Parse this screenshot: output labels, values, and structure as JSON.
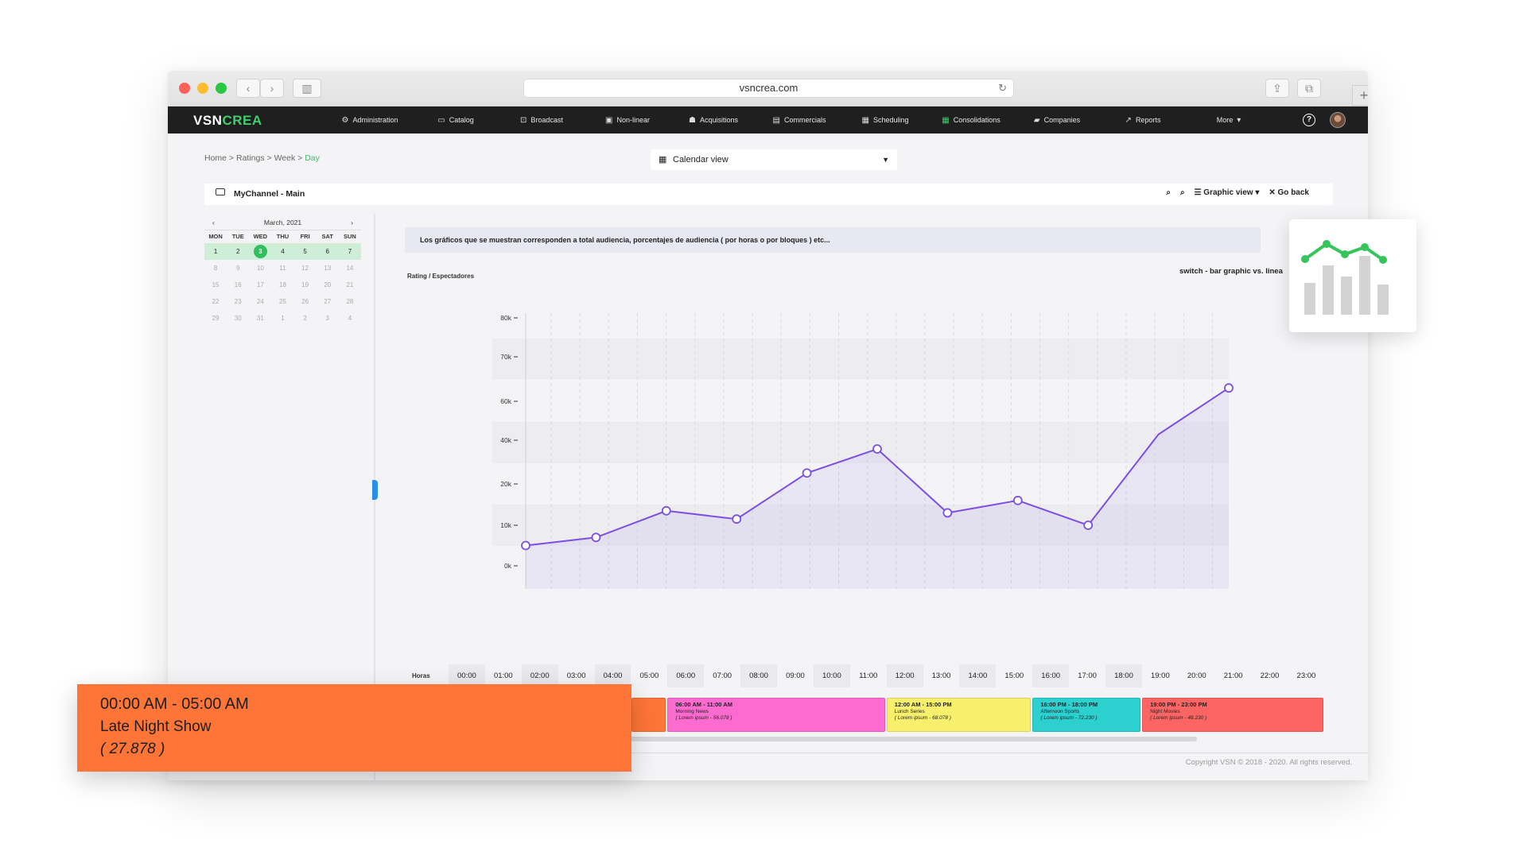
{
  "browser": {
    "url": "vsncrea.com"
  },
  "app": {
    "logo_a": "VSN",
    "logo_b": "CREA",
    "menu": [
      {
        "label": "Administration",
        "icon": "gear-icon",
        "glyph": "⚙"
      },
      {
        "label": "Catalog",
        "icon": "folder-icon",
        "glyph": "▭"
      },
      {
        "label": "Broadcast",
        "icon": "cast-icon",
        "glyph": "⊡"
      },
      {
        "label": "Non-linear",
        "icon": "screen-icon",
        "glyph": "▣"
      },
      {
        "label": "Acquisitions",
        "icon": "basket-icon",
        "glyph": "☗"
      },
      {
        "label": "Commercials",
        "icon": "list-icon",
        "glyph": "▤"
      },
      {
        "label": "Scheduling",
        "icon": "calendar-icon",
        "glyph": "▦"
      },
      {
        "label": "Consolidations",
        "icon": "calendar-check-icon",
        "glyph": "▦"
      },
      {
        "label": "Companies",
        "icon": "briefcase-icon",
        "glyph": "▰"
      },
      {
        "label": "Reports",
        "icon": "trend-icon",
        "glyph": "↗"
      },
      {
        "label": "More",
        "icon": "caret-down-icon",
        "glyph": "▾"
      }
    ],
    "help": "?"
  },
  "breadcrumb": {
    "items": [
      "Home",
      "Ratings",
      "Week"
    ],
    "current": "Day"
  },
  "view_select": {
    "label": "Calendar view"
  },
  "channel": {
    "title": "MyChannel - Main"
  },
  "tools": {
    "graphic_view": "Graphic view",
    "go_back": "Go back"
  },
  "calendar": {
    "month": "March, 2021",
    "dow": [
      "MON",
      "TUE",
      "WED",
      "THU",
      "FRI",
      "SAT",
      "SUN"
    ],
    "weeks": [
      [
        "1",
        "2",
        "3",
        "4",
        "5",
        "6",
        "7"
      ],
      [
        "8",
        "9",
        "10",
        "11",
        "12",
        "13",
        "14"
      ],
      [
        "15",
        "16",
        "17",
        "18",
        "19",
        "20",
        "21"
      ],
      [
        "22",
        "23",
        "24",
        "25",
        "26",
        "27",
        "28"
      ],
      [
        "29",
        "30",
        "31",
        "1",
        "2",
        "3",
        "4"
      ]
    ],
    "selected": "3"
  },
  "info_text": "Los gráficos que se muestran corresponden a total audiencia, porcentajes de audiencia ( por horas o por bloques ) etc...",
  "switch_label": "switch - bar graphic vs. linea",
  "chart_data": {
    "type": "line",
    "ylabel": "Rating / Espectadores",
    "xlabel": "Horas",
    "y_ticks": [
      "0k",
      "10k",
      "20k",
      "40k",
      "60k",
      "70k",
      "80k"
    ],
    "x": [
      "00:00",
      "01:00",
      "02:00",
      "03:00",
      "04:00",
      "05:00",
      "06:00",
      "07:00",
      "08:00",
      "09:00",
      "10:00",
      "11:00",
      "12:00",
      "13:00",
      "14:00",
      "15:00",
      "16:00",
      "17:00",
      "18:00",
      "19:00",
      "20:00",
      "21:00",
      "22:00",
      "23:00"
    ],
    "series": [
      {
        "points": [
          {
            "hour": 0,
            "value": 5
          },
          {
            "hour": 2.4,
            "value": 7
          },
          {
            "hour": 4.8,
            "value": 13.5
          },
          {
            "hour": 7.2,
            "value": 11.5
          },
          {
            "hour": 9.6,
            "value": 25
          },
          {
            "hour": 12,
            "value": 36
          },
          {
            "hour": 14.4,
            "value": 13
          },
          {
            "hour": 16.8,
            "value": 16
          },
          {
            "hour": 19.2,
            "value": 10
          },
          {
            "hour": 21.6,
            "value": 43
          },
          {
            "hour": 24,
            "value": 63
          }
        ]
      }
    ]
  },
  "blocks": [
    {
      "time": "",
      "name": "",
      "sub": "",
      "color": "#fe7537",
      "start_hour": 5,
      "end_hour": 6
    },
    {
      "time": "06:00 AM - 11:00 AM",
      "name": "Morning News",
      "sub": "( Lorem ipsum - 56.078 )",
      "color": "#fe6bd0",
      "start_hour": 6,
      "end_hour": 12
    },
    {
      "time": "12:00 AM - 15:00 PM",
      "name": "Lunch Series",
      "sub": "( Lorem ipsum - 68.078 )",
      "color": "#f8f06d",
      "start_hour": 12,
      "end_hour": 16
    },
    {
      "time": "16:00 PM - 18:00 PM",
      "name": "Afternoon Sports",
      "sub": "( Lorem ipsum - 72.230 )",
      "color": "#2bd0cf",
      "start_hour": 16,
      "end_hour": 19
    },
    {
      "time": "19:00 PM - 23:00 PM",
      "name": "Night Movies",
      "sub": "( Lorem ipsum - 48.230 )",
      "color": "#fd6565",
      "start_hour": 19,
      "end_hour": 24
    }
  ],
  "tooltip": {
    "time": "00:00 AM - 05:00 AM",
    "name": "Late Night Show",
    "value": "(  27.878  )"
  },
  "copyright": "Copyright VSN © 2018 - 2020. All rights reserved.",
  "colors": {
    "accent": "#3dcf6a",
    "line": "#7c4ee4",
    "tooltip": "#fe7537"
  }
}
